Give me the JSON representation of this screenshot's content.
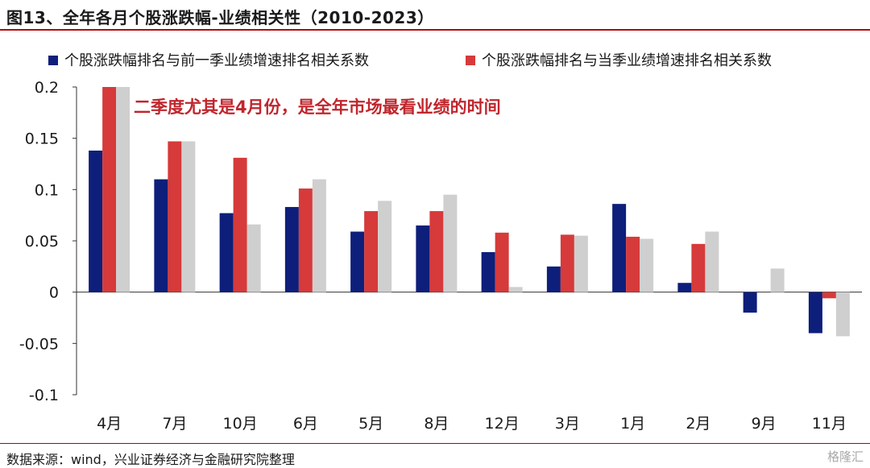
{
  "title": "图13、全年各月个股涨跌幅-业绩相关性（2010-2023）",
  "source": "数据来源：wind，兴业证券经济与金融研究院整理",
  "watermark": "格隆汇",
  "colors": {
    "series1": "#0d1f7a",
    "series2": "#d63a3a",
    "series3": "#cfcfcf",
    "annotation": "#c0262d",
    "accent": "#b30000"
  },
  "chart_data": {
    "type": "bar",
    "categories": [
      "4月",
      "7月",
      "10月",
      "6月",
      "5月",
      "8月",
      "12月",
      "3月",
      "1月",
      "2月",
      "9月",
      "11月"
    ],
    "series": [
      {
        "name": "个股涨跌幅排名与前一季业绩增速排名相关系数",
        "color": "#0d1f7a",
        "values": [
          0.138,
          0.11,
          0.077,
          0.083,
          0.059,
          0.065,
          0.039,
          0.025,
          0.086,
          0.009,
          -0.02,
          -0.04
        ]
      },
      {
        "name": "个股涨跌幅排名与当季业绩增速排名相关系数",
        "color": "#d63a3a",
        "values": [
          0.2,
          0.147,
          0.131,
          0.101,
          0.079,
          0.079,
          0.058,
          0.056,
          0.054,
          0.047,
          0.0,
          -0.006
        ]
      },
      {
        "name": "",
        "color": "#cfcfcf",
        "values": [
          0.2,
          0.147,
          0.066,
          0.11,
          0.089,
          0.095,
          0.005,
          0.055,
          0.052,
          0.059,
          0.023,
          -0.043
        ]
      }
    ],
    "yticks": [
      "0.2",
      "0.15",
      "0.1",
      "0.05",
      "0",
      "-0.05",
      "-0.1"
    ],
    "ylim": [
      -0.1,
      0.2
    ],
    "legend_position": "top",
    "grid": false,
    "annotation": "二季度尤其是4月份，是全年市场最看业绩的时间"
  }
}
